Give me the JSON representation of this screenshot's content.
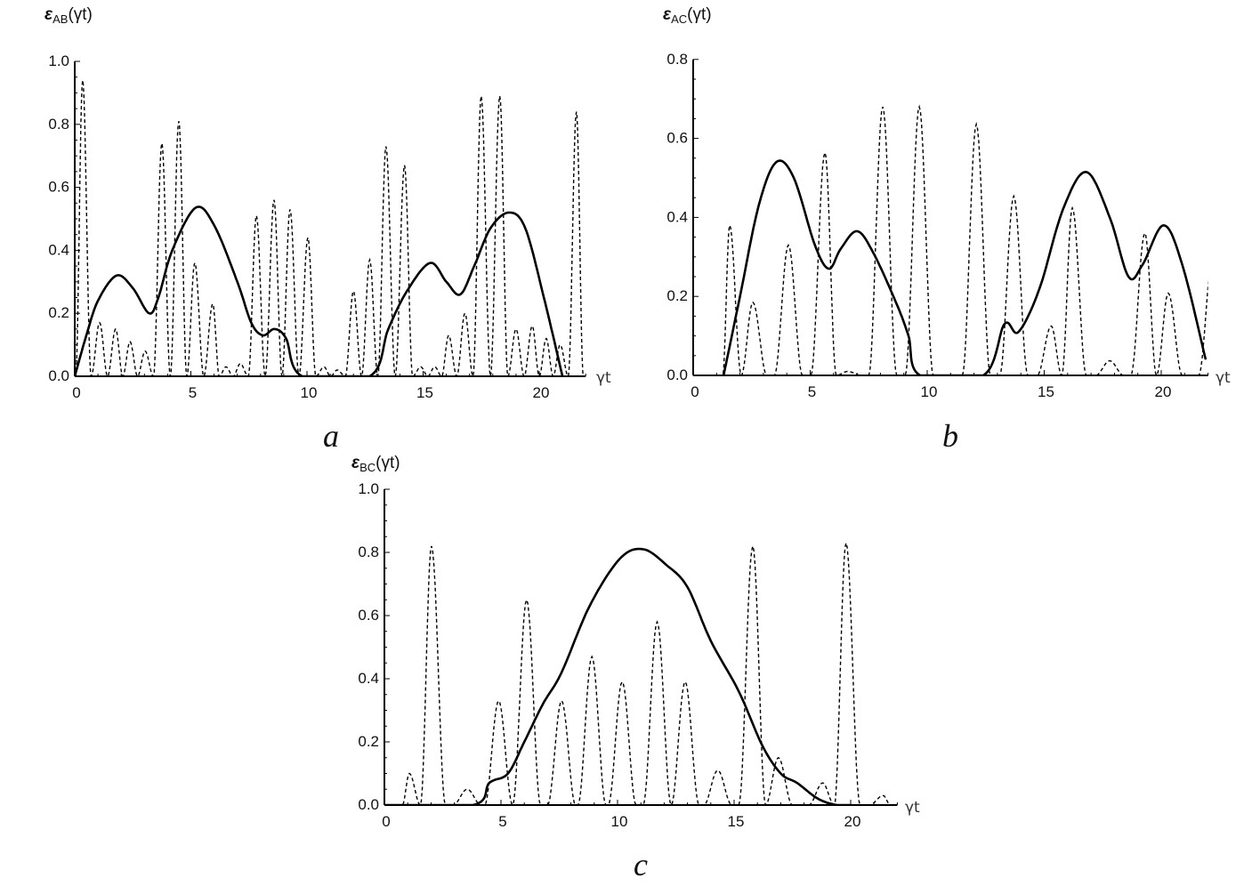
{
  "chart_data": [
    {
      "type": "line",
      "panel_label": "a",
      "ylabel": "ε",
      "ylabel_sub": "AB",
      "ylabel_arg": "(γt)",
      "xlabel": "γt",
      "xlim": [
        0,
        22
      ],
      "ylim": [
        0,
        1.0
      ],
      "xticks": [
        "0",
        "5",
        "10",
        "15",
        "20"
      ],
      "yticks": [
        "0.0",
        "0.2",
        "0.4",
        "0.6",
        "0.8",
        "1.0"
      ],
      "series": [
        {
          "style": "solid",
          "points": [
            [
              0,
              0
            ],
            [
              0.5,
              0.13
            ],
            [
              1,
              0.24
            ],
            [
              1.8,
              0.32
            ],
            [
              2.5,
              0.28
            ],
            [
              3.2,
              0.2
            ],
            [
              3.6,
              0.25
            ],
            [
              4.2,
              0.4
            ],
            [
              5.2,
              0.535
            ],
            [
              6,
              0.48
            ],
            [
              7,
              0.3
            ],
            [
              7.6,
              0.17
            ],
            [
              8.1,
              0.13
            ],
            [
              8.6,
              0.15
            ],
            [
              9.1,
              0.12
            ],
            [
              9.8,
              0
            ],
            [
              12.7,
              0
            ],
            [
              13.5,
              0.15
            ],
            [
              14.3,
              0.27
            ],
            [
              15.3,
              0.36
            ],
            [
              16,
              0.3
            ],
            [
              16.6,
              0.26
            ],
            [
              17.2,
              0.35
            ],
            [
              17.9,
              0.47
            ],
            [
              18.7,
              0.52
            ],
            [
              19.4,
              0.47
            ],
            [
              20.2,
              0.25
            ],
            [
              21.0,
              0
            ]
          ]
        },
        {
          "style": "dashed",
          "peaks": [
            [
              0.34,
              0.94
            ],
            [
              1.07,
              0.17
            ],
            [
              1.76,
              0.15
            ],
            [
              2.38,
              0.11
            ],
            [
              3.03,
              0.08
            ],
            [
              3.75,
              0.74
            ],
            [
              4.48,
              0.81
            ],
            [
              5.17,
              0.36
            ],
            [
              5.94,
              0.23
            ],
            [
              6.51,
              0.03
            ],
            [
              7.13,
              0.04
            ],
            [
              7.82,
              0.51
            ],
            [
              8.58,
              0.56
            ],
            [
              9.27,
              0.53
            ],
            [
              10.04,
              0.44
            ],
            [
              10.73,
              0.03
            ],
            [
              11.3,
              0.02
            ],
            [
              12.0,
              0.27
            ],
            [
              12.7,
              0.37
            ],
            [
              13.4,
              0.73
            ],
            [
              14.2,
              0.67
            ],
            [
              14.9,
              0.03
            ],
            [
              15.5,
              0.03
            ],
            [
              16.1,
              0.13
            ],
            [
              16.8,
              0.2
            ],
            [
              17.5,
              0.89
            ],
            [
              18.3,
              0.89
            ],
            [
              19.0,
              0.15
            ],
            [
              19.7,
              0.16
            ],
            [
              20.3,
              0.12
            ],
            [
              20.9,
              0.1
            ],
            [
              21.6,
              0.84
            ]
          ]
        }
      ]
    },
    {
      "type": "line",
      "panel_label": "b",
      "ylabel": "ε",
      "ylabel_sub": "AC",
      "ylabel_arg": "(γt)",
      "xlabel": "γt",
      "xlim": [
        0,
        22
      ],
      "ylim": [
        0,
        0.8
      ],
      "xticks": [
        "0",
        "5",
        "10",
        "15",
        "20"
      ],
      "yticks": [
        "0.0",
        "0.2",
        "0.4",
        "0.6",
        "0.8"
      ],
      "series": [
        {
          "style": "solid",
          "points": [
            [
              1.3,
              0
            ],
            [
              2,
              0.2
            ],
            [
              2.8,
              0.43
            ],
            [
              3.55,
              0.54
            ],
            [
              4.3,
              0.5
            ],
            [
              5.2,
              0.33
            ],
            [
              5.8,
              0.27
            ],
            [
              6.3,
              0.32
            ],
            [
              7,
              0.365
            ],
            [
              7.7,
              0.31
            ],
            [
              8.7,
              0.18
            ],
            [
              9.2,
              0.1
            ],
            [
              9.7,
              0
            ],
            [
              12.4,
              0
            ],
            [
              13.3,
              0.13
            ],
            [
              13.9,
              0.11
            ],
            [
              14.8,
              0.22
            ],
            [
              15.8,
              0.42
            ],
            [
              16.8,
              0.515
            ],
            [
              17.8,
              0.4
            ],
            [
              18.6,
              0.25
            ],
            [
              19.2,
              0.28
            ],
            [
              20.1,
              0.38
            ],
            [
              20.9,
              0.28
            ],
            [
              21.9,
              0.04
            ]
          ]
        },
        {
          "style": "dashed",
          "peaks": [
            [
              1.56,
              0.38
            ],
            [
              2.55,
              0.185
            ],
            [
              4.07,
              0.33
            ],
            [
              5.63,
              0.564
            ],
            [
              6.6,
              0.01
            ],
            [
              8.1,
              0.68
            ],
            [
              9.66,
              0.68
            ],
            [
              12.1,
              0.636
            ],
            [
              13.7,
              0.454
            ],
            [
              15.3,
              0.125
            ],
            [
              16.2,
              0.424
            ],
            [
              17.8,
              0.037
            ],
            [
              19.3,
              0.36
            ],
            [
              20.3,
              0.208
            ],
            [
              22.2,
              0.3
            ]
          ]
        }
      ]
    },
    {
      "type": "line",
      "panel_label": "c",
      "ylabel": "ε",
      "ylabel_sub": "BC",
      "ylabel_arg": "(γt)",
      "xlabel": "γt",
      "xlim": [
        0,
        22
      ],
      "ylim": [
        0,
        1.0
      ],
      "xticks": [
        "0",
        "5",
        "10",
        "15",
        "20"
      ],
      "yticks": [
        "0.0",
        "0.2",
        "0.4",
        "0.6",
        "0.8",
        "1.0"
      ],
      "series": [
        {
          "style": "solid",
          "points": [
            [
              0,
              0
            ],
            [
              3.8,
              0
            ],
            [
              4.5,
              0.07
            ],
            [
              5.3,
              0.1
            ],
            [
              6,
              0.2
            ],
            [
              6.8,
              0.32
            ],
            [
              7.6,
              0.42
            ],
            [
              8.8,
              0.63
            ],
            [
              10.1,
              0.78
            ],
            [
              11.1,
              0.81
            ],
            [
              12.1,
              0.76
            ],
            [
              13,
              0.69
            ],
            [
              14,
              0.52
            ],
            [
              15.2,
              0.36
            ],
            [
              16.2,
              0.19
            ],
            [
              17.0,
              0.1
            ],
            [
              17.7,
              0.07
            ],
            [
              18.6,
              0.02
            ],
            [
              19.4,
              0
            ],
            [
              20,
              0
            ]
          ]
        },
        {
          "style": "dashed",
          "peaks": [
            [
              1.07,
              0.1
            ],
            [
              2.02,
              0.82
            ],
            [
              3.55,
              0.05
            ],
            [
              4.9,
              0.33
            ],
            [
              6.1,
              0.65
            ],
            [
              7.6,
              0.33
            ],
            [
              8.9,
              0.47
            ],
            [
              10.2,
              0.39
            ],
            [
              11.7,
              0.58
            ],
            [
              12.9,
              0.39
            ],
            [
              14.3,
              0.11
            ],
            [
              15.8,
              0.82
            ],
            [
              16.9,
              0.15
            ],
            [
              18.8,
              0.07
            ],
            [
              19.8,
              0.83
            ],
            [
              21.4,
              0.03
            ]
          ]
        }
      ]
    }
  ]
}
